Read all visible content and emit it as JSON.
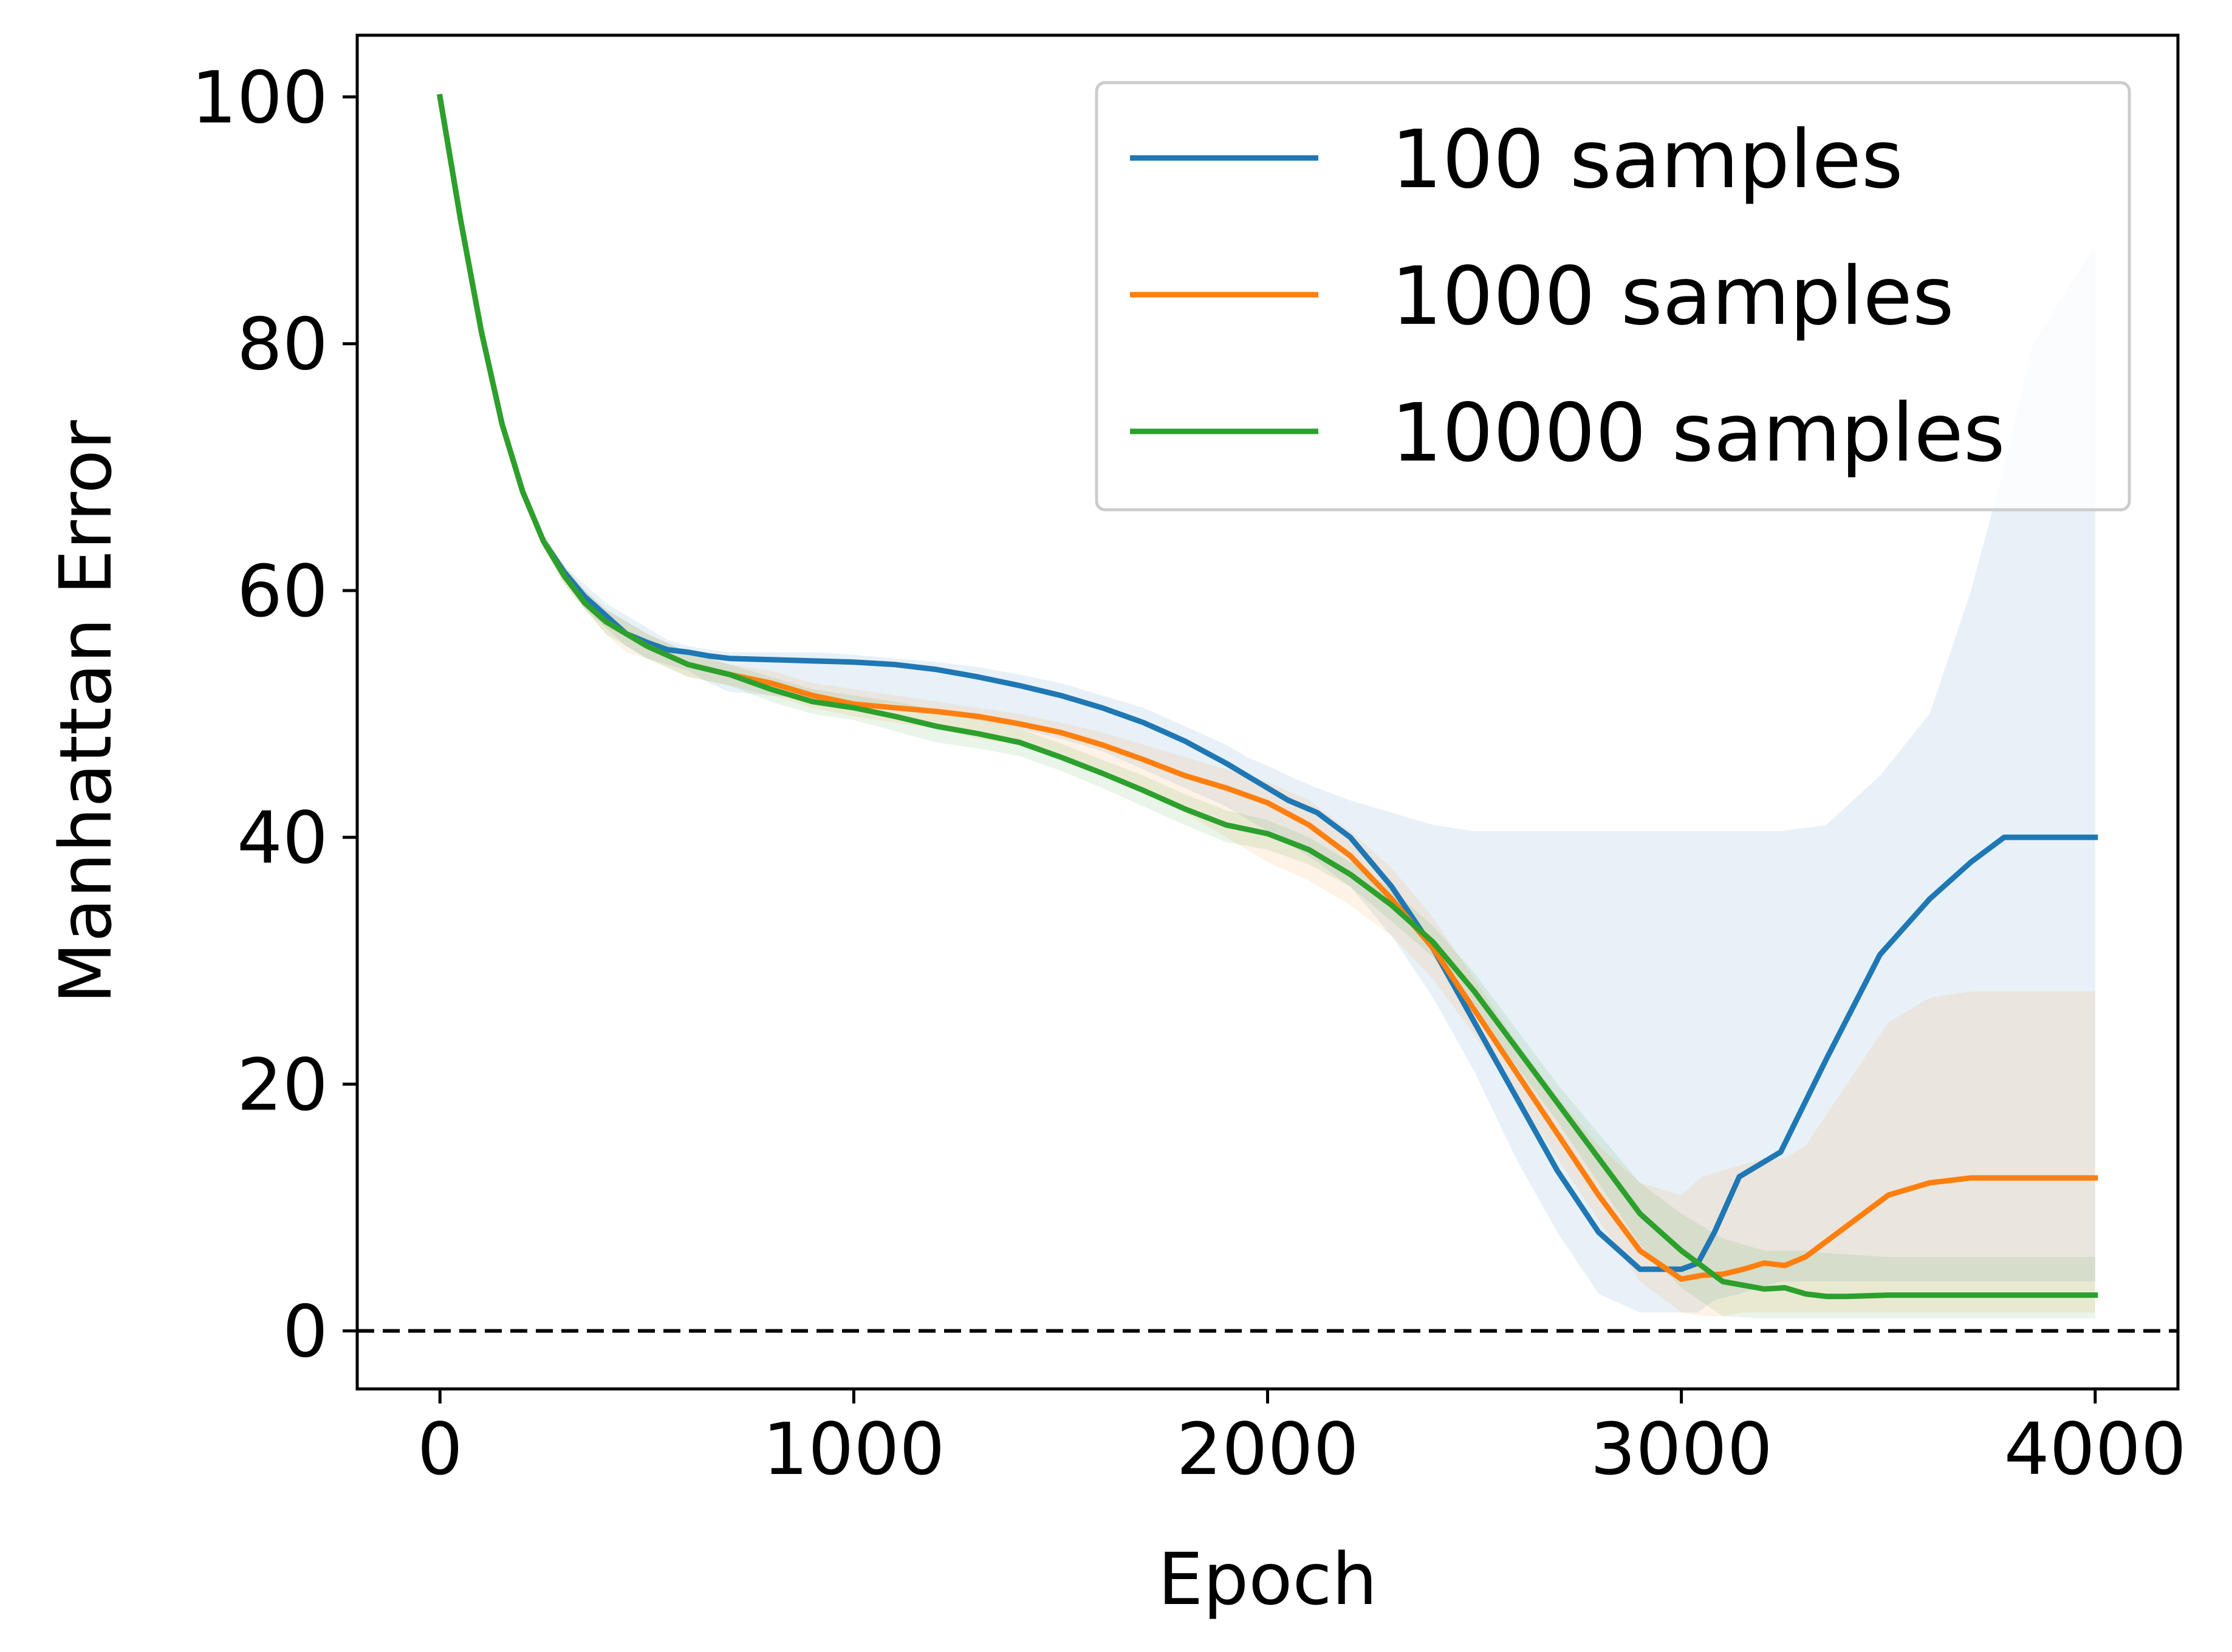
{
  "chart_data": {
    "type": "line",
    "xlabel": "Epoch",
    "ylabel": "Manhattan Error",
    "xlim": [
      -200,
      4200
    ],
    "ylim": [
      -4.7,
      105
    ],
    "xticks": [
      0,
      1000,
      2000,
      3000,
      4000
    ],
    "yticks": [
      0,
      20,
      40,
      60,
      80,
      100
    ],
    "reference_line": {
      "y": 0,
      "style": "dashed",
      "color": "#000000"
    },
    "grid": false,
    "legend_position": "top-right",
    "series": [
      {
        "name": "100 samples",
        "color": "#1f77b4",
        "x": [
          0,
          50,
          100,
          150,
          200,
          250,
          300,
          350,
          400,
          450,
          500,
          550,
          600,
          650,
          700,
          800,
          900,
          1000,
          1100,
          1200,
          1300,
          1400,
          1500,
          1600,
          1700,
          1800,
          1900,
          1950,
          2000,
          2050,
          2120,
          2200,
          2300,
          2400,
          2500,
          2600,
          2700,
          2800,
          2900,
          3000,
          3040,
          3080,
          3140,
          3240,
          3350,
          3480,
          3600,
          3700,
          3780,
          3850,
          4000
        ],
        "y": [
          100,
          90,
          81,
          73.5,
          68,
          64,
          61.5,
          59.5,
          58,
          56.5,
          55.8,
          55.2,
          55,
          54.7,
          54.5,
          54.4,
          54.3,
          54.2,
          54,
          53.6,
          53,
          52.3,
          51.5,
          50.5,
          49.3,
          47.8,
          46,
          45,
          44,
          43,
          42,
          40,
          36,
          31,
          25,
          19,
          13,
          8,
          5,
          5,
          5.5,
          8,
          12.5,
          14.5,
          22,
          30.5,
          35,
          38,
          40,
          40,
          40
        ],
        "band_upper": [
          100,
          90,
          81,
          74,
          68.5,
          64.5,
          62,
          60.5,
          59,
          58,
          57,
          56,
          55.5,
          55.2,
          55,
          55,
          55,
          54.8,
          54.5,
          54.2,
          53.8,
          53.2,
          52.5,
          51.5,
          50.5,
          49,
          47.5,
          46.5,
          45.8,
          45,
          44,
          43,
          42,
          41,
          40.5,
          40.5,
          40.5,
          40.5,
          40.5,
          40.5,
          40.5,
          40.5,
          40.5,
          40.5,
          41,
          45,
          50,
          60,
          70,
          80,
          88
        ],
        "band_lower": [
          100,
          90,
          81,
          73,
          67.5,
          63.5,
          61,
          58.5,
          57,
          55.5,
          54.5,
          54,
          53.5,
          52.5,
          51.8,
          51.5,
          51.2,
          51,
          50.8,
          50.3,
          49.5,
          48.8,
          48,
          47,
          45.5,
          44,
          42.5,
          41.5,
          40.5,
          39.5,
          38,
          36,
          32,
          27,
          21,
          14,
          8,
          3,
          1.5,
          1.5,
          1.5,
          2.5,
          3,
          4,
          4,
          4,
          4,
          4,
          4,
          4,
          4
        ]
      },
      {
        "name": "1000 samples",
        "color": "#ff7f0e",
        "x": [
          0,
          50,
          100,
          150,
          200,
          250,
          300,
          350,
          400,
          450,
          500,
          600,
          700,
          800,
          900,
          1000,
          1100,
          1200,
          1300,
          1400,
          1500,
          1600,
          1700,
          1800,
          1900,
          2000,
          2100,
          2200,
          2300,
          2400,
          2500,
          2600,
          2700,
          2800,
          2900,
          3000,
          3050,
          3100,
          3150,
          3200,
          3250,
          3300,
          3400,
          3500,
          3600,
          3700,
          4000
        ],
        "y": [
          100,
          90,
          81,
          73.5,
          68,
          64,
          61.2,
          59,
          57.5,
          56.5,
          55.5,
          54,
          53.2,
          52.5,
          51.5,
          50.8,
          50.5,
          50.2,
          49.8,
          49.2,
          48.5,
          47.5,
          46.3,
          45,
          44,
          42.8,
          41,
          38.5,
          35,
          31,
          26,
          21,
          16,
          11,
          6.5,
          4.2,
          4.5,
          4.6,
          5,
          5.5,
          5.3,
          6,
          8.5,
          11,
          12,
          12.4,
          12.4
        ],
        "band_upper": [
          100,
          90,
          81,
          74,
          68.5,
          64.5,
          62,
          60,
          58.5,
          57.5,
          56.5,
          55,
          54,
          53.5,
          52.5,
          52,
          51.5,
          51,
          50.5,
          50,
          49.3,
          48.5,
          47.5,
          46.5,
          45.5,
          44.5,
          43,
          40.5,
          37.5,
          33.5,
          28.5,
          23.5,
          19,
          15,
          12,
          11,
          12.5,
          13,
          13.5,
          14,
          14,
          15,
          20,
          25,
          27,
          27.5,
          27.5
        ],
        "band_lower": [
          100,
          90,
          81,
          73,
          67.5,
          63.5,
          60.5,
          58.5,
          56.5,
          55,
          54.5,
          53,
          52.3,
          51.5,
          50.5,
          49.8,
          49.3,
          48.8,
          48,
          47.5,
          46.5,
          45.5,
          44,
          42,
          40,
          38,
          36.5,
          34.5,
          32,
          28.5,
          24,
          19,
          14,
          9,
          4,
          1.5,
          1.2,
          1.2,
          1.5,
          1.5,
          1.5,
          1.5,
          1.5,
          1.5,
          1.5,
          1.5,
          1.5
        ]
      },
      {
        "name": "10000 samples",
        "color": "#2ca02c",
        "x": [
          0,
          50,
          100,
          150,
          200,
          250,
          300,
          350,
          400,
          450,
          500,
          600,
          700,
          800,
          900,
          1000,
          1100,
          1200,
          1300,
          1400,
          1500,
          1600,
          1700,
          1800,
          1900,
          2000,
          2100,
          2200,
          2300,
          2400,
          2500,
          2600,
          2700,
          2800,
          2900,
          3000,
          3100,
          3200,
          3250,
          3300,
          3350,
          3400,
          3500,
          3600,
          3700,
          4000
        ],
        "y": [
          100,
          90,
          81,
          73.5,
          68,
          64,
          61.2,
          59,
          57.5,
          56.5,
          55.5,
          54,
          53.2,
          52,
          51,
          50.5,
          49.8,
          49,
          48.4,
          47.7,
          46.5,
          45.2,
          43.8,
          42.3,
          41,
          40.3,
          39,
          37,
          34.5,
          31.5,
          27.5,
          23,
          18.5,
          14,
          9.5,
          6.5,
          4,
          3.4,
          3.5,
          3,
          2.8,
          2.8,
          2.9,
          2.9,
          2.9,
          2.9
        ],
        "band_upper": [
          100,
          90,
          81,
          74,
          68.5,
          64.5,
          62,
          60,
          58.5,
          57.5,
          56.5,
          55,
          54,
          53,
          52,
          51.5,
          51,
          50.3,
          49.6,
          48.8,
          47.6,
          46.3,
          45,
          43.5,
          42.2,
          41.4,
          40,
          38,
          35.8,
          32.8,
          29,
          24.5,
          20,
          16,
          12,
          9.5,
          7.5,
          6.5,
          6.5,
          6.5,
          6.3,
          6.2,
          6,
          6,
          6,
          6
        ],
        "band_lower": [
          100,
          90,
          81,
          73,
          67.5,
          63.5,
          60.5,
          58.5,
          56.5,
          55.5,
          54.5,
          53,
          52.3,
          51,
          50,
          49.5,
          48.6,
          47.7,
          47.2,
          46.6,
          45.4,
          44,
          42.5,
          41,
          39.6,
          39,
          37.8,
          36,
          33.2,
          30.3,
          26,
          21.5,
          17,
          12,
          7,
          3.5,
          1.2,
          1,
          1,
          1,
          1,
          1,
          1,
          1,
          1,
          1
        ]
      }
    ]
  }
}
